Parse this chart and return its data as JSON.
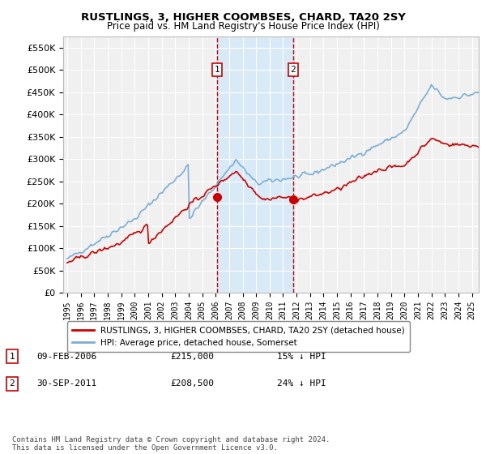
{
  "title": "RUSTLINGS, 3, HIGHER COOMBSES, CHARD, TA20 2SY",
  "subtitle": "Price paid vs. HM Land Registry's House Price Index (HPI)",
  "legend_red": "RUSTLINGS, 3, HIGHER COOMBSES, CHARD, TA20 2SY (detached house)",
  "legend_blue": "HPI: Average price, detached house, Somerset",
  "sale1_label": "1",
  "sale1_date": "09-FEB-2006",
  "sale1_price": "£215,000",
  "sale1_hpi": "15% ↓ HPI",
  "sale1_year": 2006.12,
  "sale1_value": 215000,
  "sale2_label": "2",
  "sale2_date": "30-SEP-2011",
  "sale2_price": "£208,500",
  "sale2_hpi": "24% ↓ HPI",
  "sale2_year": 2011.75,
  "sale2_value": 208500,
  "footnote": "Contains HM Land Registry data © Crown copyright and database right 2024.\nThis data is licensed under the Open Government Licence v3.0.",
  "ylim": [
    0,
    575000
  ],
  "yticks": [
    0,
    50000,
    100000,
    150000,
    200000,
    250000,
    300000,
    350000,
    400000,
    450000,
    500000,
    550000
  ],
  "ytick_labels": [
    "£0",
    "£50K",
    "£100K",
    "£150K",
    "£200K",
    "£250K",
    "£300K",
    "£350K",
    "£400K",
    "£450K",
    "£500K",
    "£550K"
  ],
  "xlim_start": 1994.7,
  "xlim_end": 2025.5,
  "xticks": [
    1995,
    1996,
    1997,
    1998,
    1999,
    2000,
    2001,
    2002,
    2003,
    2004,
    2005,
    2006,
    2007,
    2008,
    2009,
    2010,
    2011,
    2012,
    2013,
    2014,
    2015,
    2016,
    2017,
    2018,
    2019,
    2020,
    2021,
    2022,
    2023,
    2024,
    2025
  ],
  "red_color": "#cc0000",
  "blue_color": "#7aaed6",
  "background_plot": "#f0f0f0",
  "background_fig": "#ffffff",
  "grid_color": "#ffffff",
  "sale_box_color": "#cc0000",
  "shade_color": "#d8eaf7"
}
